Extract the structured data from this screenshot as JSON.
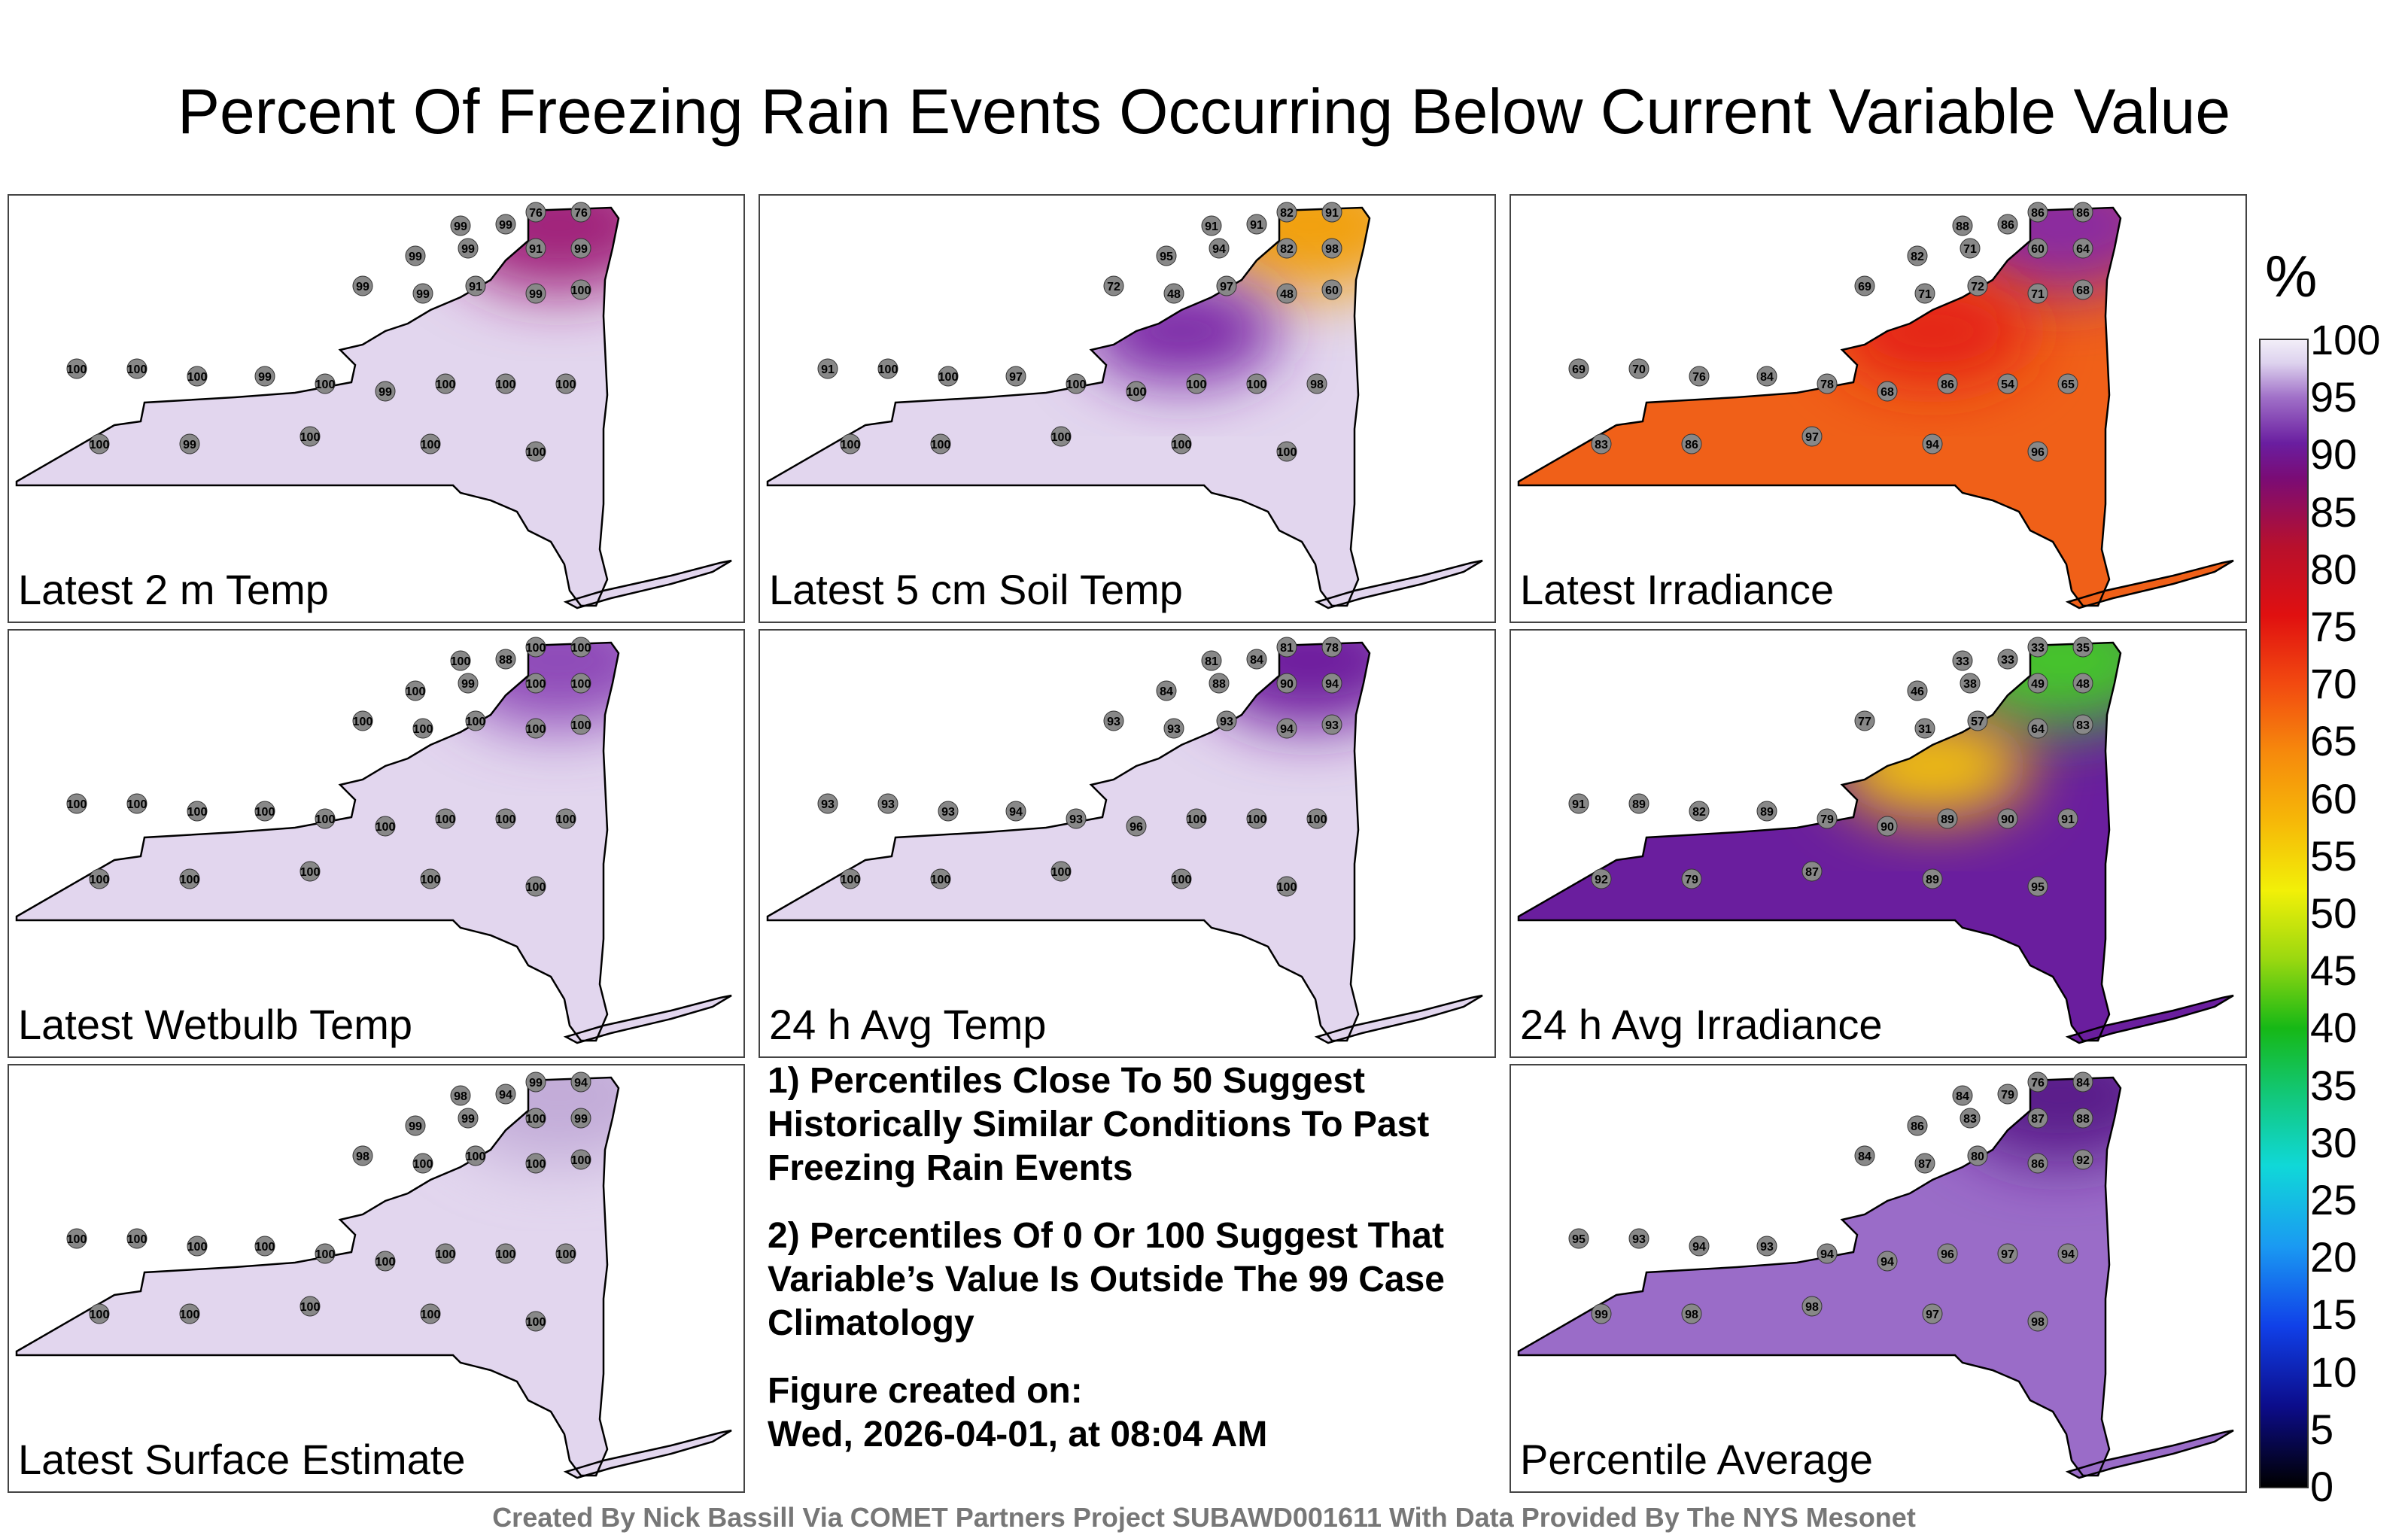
{
  "title": "Percent Of Freezing Rain Events Occurring Below Current Variable Value",
  "panels": [
    {
      "label": "Latest 2 m Temp",
      "base": "#e2d6ee",
      "blobs": [
        {
          "c": "#a0207a",
          "v": 76
        }
      ],
      "stations": [
        "99",
        "99",
        "76",
        "76",
        "99",
        "99",
        "91",
        "99",
        "99",
        "99",
        "91",
        "99",
        "100",
        "100",
        "100",
        "100",
        "99",
        "100",
        "99",
        "100",
        "100",
        "100",
        "100",
        "99",
        "100",
        "100",
        "100"
      ]
    },
    {
      "label": "Latest 5 cm Soil Temp",
      "base": "#e2d6ee",
      "blobs": [
        {
          "c": "#f2a010",
          "v": 48
        },
        {
          "c": "#7a28a6",
          "v": 91
        }
      ],
      "stations": [
        "91",
        "91",
        "82",
        "91",
        "95",
        "94",
        "82",
        "98",
        "72",
        "48",
        "97",
        "48",
        "60",
        "91",
        "100",
        "100",
        "97",
        "100",
        "100",
        "100",
        "100",
        "98",
        "100",
        "100",
        "100",
        "100",
        "100"
      ]
    },
    {
      "label": "Latest Irradiance",
      "base": "#f06018",
      "blobs": [
        {
          "c": "#8a2aa0",
          "v": 88
        },
        {
          "c": "#e42014",
          "v": 71
        }
      ],
      "stations": [
        "88",
        "86",
        "86",
        "86",
        "82",
        "71",
        "60",
        "64",
        "69",
        "71",
        "72",
        "71",
        "68",
        "69",
        "70",
        "76",
        "84",
        "78",
        "68",
        "86",
        "54",
        "65",
        "83",
        "86",
        "97",
        "94",
        "96"
      ]
    },
    {
      "label": "Latest Wetbulb Temp",
      "base": "#e2d6ee",
      "blobs": [
        {
          "c": "#8e48b8",
          "v": 88
        }
      ],
      "stations": [
        "100",
        "88",
        "100",
        "100",
        "100",
        "99",
        "100",
        "100",
        "100",
        "100",
        "100",
        "100",
        "100",
        "100",
        "100",
        "100",
        "100",
        "100",
        "100",
        "100",
        "100",
        "100",
        "100",
        "100",
        "100",
        "100",
        "100"
      ]
    },
    {
      "label": "24 h Avg Temp",
      "base": "#e2d6ee",
      "blobs": [
        {
          "c": "#6e1e9e",
          "v": 84
        }
      ],
      "stations": [
        "81",
        "84",
        "81",
        "78",
        "84",
        "88",
        "90",
        "94",
        "93",
        "93",
        "93",
        "94",
        "93",
        "93",
        "93",
        "93",
        "94",
        "93",
        "96",
        "100",
        "100",
        "100",
        "100",
        "100",
        "100",
        "100",
        "100"
      ]
    },
    {
      "label": "24 h Avg Irradiance",
      "base": "#6a1e9e",
      "blobs": [
        {
          "c": "#44c42a",
          "v": 33
        },
        {
          "c": "#f2c010",
          "v": 57
        }
      ],
      "stations": [
        "33",
        "33",
        "33",
        "35",
        "46",
        "38",
        "49",
        "48",
        "77",
        "31",
        "57",
        "64",
        "83",
        "91",
        "89",
        "82",
        "89",
        "79",
        "90",
        "89",
        "90",
        "91",
        "92",
        "79",
        "87",
        "89",
        "95"
      ]
    },
    {
      "label": "Latest Surface Estimate",
      "base": "#e2d6ee",
      "blobs": [
        {
          "c": "#c2acd8",
          "v": 94
        }
      ],
      "stations": [
        "98",
        "94",
        "99",
        "94",
        "99",
        "99",
        "100",
        "99",
        "98",
        "100",
        "100",
        "100",
        "100",
        "100",
        "100",
        "100",
        "100",
        "100",
        "100",
        "100",
        "100",
        "100",
        "100",
        "100",
        "100",
        "100",
        "100"
      ]
    },
    {
      "label": "Percentile Average",
      "base": "#9a6cc8",
      "blobs": [
        {
          "c": "#5a1c8a",
          "v": 84
        }
      ],
      "stations": [
        "84",
        "79",
        "76",
        "84",
        "86",
        "83",
        "87",
        "88",
        "84",
        "87",
        "80",
        "86",
        "92",
        "95",
        "93",
        "94",
        "93",
        "94",
        "94",
        "96",
        "97",
        "94",
        "99",
        "98",
        "98",
        "97",
        "98"
      ]
    }
  ],
  "notes": [
    "1) Percentiles Close To 50 Suggest Historically Similar Conditions To Past Freezing Rain Events",
    "2) Percentiles Of 0 Or 100 Suggest That Variable’s Value Is Outside The 99 Case Climatology",
    "Figure created on:",
    "Wed, 2026-04-01, at 08:04 AM"
  ],
  "colorbar": {
    "unit": "%",
    "ticks": [
      "100",
      "95",
      "90",
      "85",
      "80",
      "75",
      "70",
      "65",
      "60",
      "55",
      "50",
      "45",
      "40",
      "35",
      "30",
      "25",
      "20",
      "15",
      "10",
      "5",
      "0"
    ]
  },
  "footer": "Created By Nick Bassill Via COMET Partners Project SUBAWD001611 With Data Provided By The NYS Mesonet",
  "chart_data": {
    "type": "heatmap",
    "title": "Percent Of Freezing Rain Events Occurring Below Current Variable Value",
    "unit": "%",
    "range": [
      0,
      100
    ],
    "panels": [
      "Latest 2 m Temp",
      "Latest 5 cm Soil Temp",
      "Latest Irradiance",
      "Latest Wetbulb Temp",
      "24 h Avg Temp",
      "24 h Avg Irradiance",
      "Latest Surface Estimate",
      "Percentile Average"
    ]
  }
}
